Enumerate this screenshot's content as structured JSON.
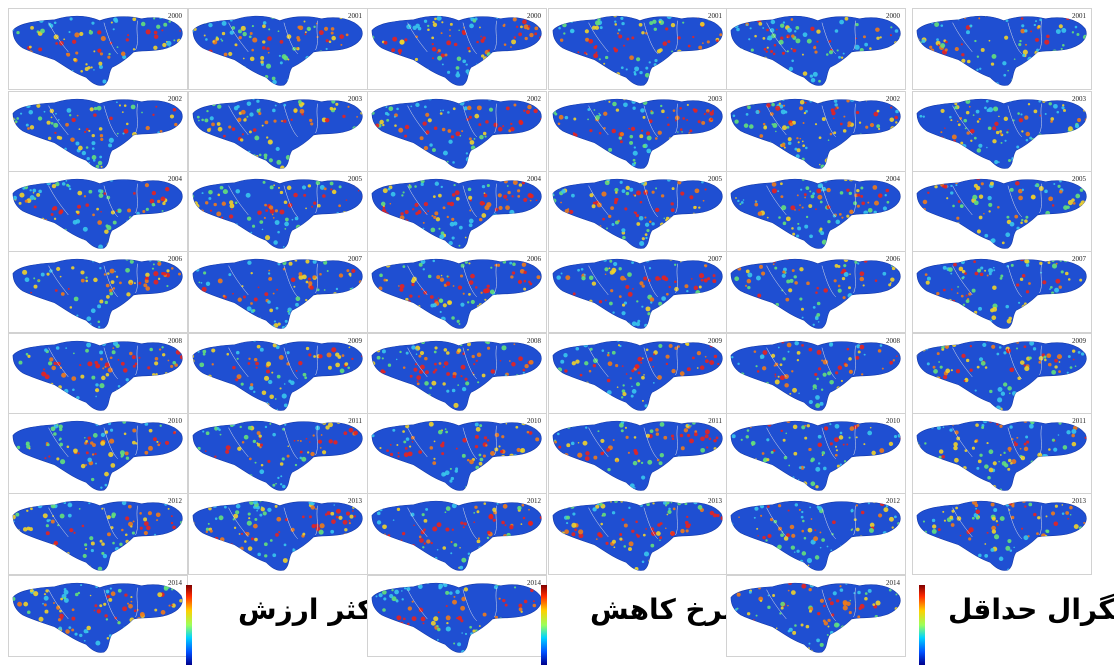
{
  "groups": [
    {
      "title": "حداکثر ارزش",
      "panels": [
        {
          "year": "2000"
        },
        {
          "year": "2001"
        },
        {
          "year": "2002"
        },
        {
          "year": "2003"
        },
        {
          "year": "2004"
        },
        {
          "year": "2005"
        },
        {
          "year": "2006"
        },
        {
          "year": "2007"
        },
        {
          "year": "2008"
        },
        {
          "year": "2009"
        },
        {
          "year": "2010"
        },
        {
          "year": "2011"
        },
        {
          "year": "2012"
        },
        {
          "year": "2013"
        },
        {
          "year": "2014"
        }
      ]
    },
    {
      "title": "نرخ کاهش",
      "panels": [
        {
          "year": "2000"
        },
        {
          "year": "2001"
        },
        {
          "year": "2002"
        },
        {
          "year": "2003"
        },
        {
          "year": "2004"
        },
        {
          "year": "2005"
        },
        {
          "year": "2006"
        },
        {
          "year": "2007"
        },
        {
          "year": "2008"
        },
        {
          "year": "2009"
        },
        {
          "year": "2010"
        },
        {
          "year": "2011"
        },
        {
          "year": "2012"
        },
        {
          "year": "2013"
        },
        {
          "year": "2014"
        }
      ]
    },
    {
      "title": "انتگرال حداقل",
      "panels": [
        {
          "year": "2000"
        },
        {
          "year": "2001"
        },
        {
          "year": "2002"
        },
        {
          "year": "2003"
        },
        {
          "year": "2004"
        },
        {
          "year": "2005"
        },
        {
          "year": "2006"
        },
        {
          "year": "2007"
        },
        {
          "year": "2008"
        },
        {
          "year": "2009"
        },
        {
          "year": "2010"
        },
        {
          "year": "2011"
        },
        {
          "year": "2012"
        },
        {
          "year": "2013"
        },
        {
          "year": "2014"
        }
      ]
    }
  ],
  "colors": {
    "region_fill": "#1f4fd2",
    "region_edge": "#1338a8",
    "hot_red": "#e8221e",
    "warm_orange": "#f07a1a",
    "warm_yellow": "#f0d22a",
    "cool_green": "#64e07a",
    "cool_cyan": "#39c6ec",
    "boundary": "#e6e6e6"
  }
}
